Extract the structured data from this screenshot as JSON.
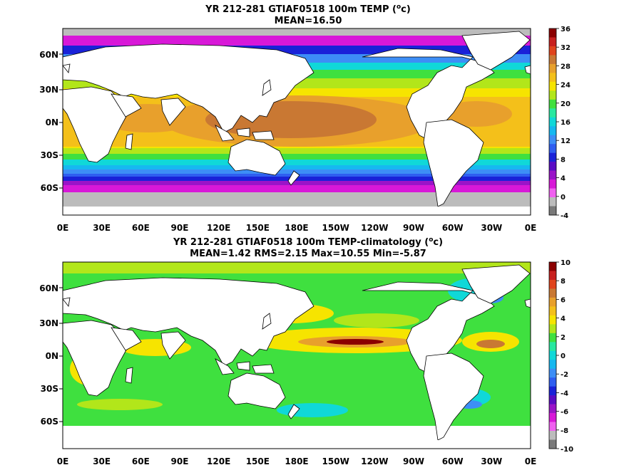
{
  "panels": [
    {
      "title_line1": "YR 212-281 GTIAF0518 100m TEMP (",
      "title_unit": "o",
      "title_suffix": "c)",
      "title_line2": "MEAN=16.50",
      "lat_ticks": [
        "60N",
        "30N",
        "0N",
        "30S",
        "60S"
      ],
      "lon_ticks": [
        "0E",
        "30E",
        "60E",
        "90E",
        "120E",
        "150E",
        "180E",
        "150W",
        "120W",
        "90W",
        "60W",
        "30W",
        "0E"
      ],
      "colorbar_ticks": [
        "36",
        "32",
        "28",
        "24",
        "20",
        "16",
        "12",
        "8",
        "4",
        "0",
        "-4"
      ],
      "colorbar_colors": [
        "#8b0000",
        "#c8201e",
        "#e0441c",
        "#c97833",
        "#e8a02c",
        "#f4c01a",
        "#f6e400",
        "#b2e61a",
        "#3fe03f",
        "#28e8a0",
        "#10d8d8",
        "#16b8f0",
        "#3d8ef6",
        "#2f5ef0",
        "#1a22d8",
        "#5a0cc4",
        "#9a14c8",
        "#d818d8",
        "#f060f0",
        "#bcbcbc",
        "#7a7a7a"
      ]
    },
    {
      "title_line1": "YR 212-281 GTIAF0518 100m TEMP-climatology (",
      "title_unit": "o",
      "title_suffix": "c)",
      "title_line2": "MEAN=1.42  RMS=2.15  Max=10.55  Min=-5.87",
      "lat_ticks": [
        "60N",
        "30N",
        "0N",
        "30S",
        "60S"
      ],
      "lon_ticks": [
        "0E",
        "30E",
        "60E",
        "90E",
        "120E",
        "150E",
        "180E",
        "150W",
        "120W",
        "90W",
        "60W",
        "30W",
        "0E"
      ],
      "colorbar_ticks": [
        "10",
        "8",
        "6",
        "4",
        "2",
        "0",
        "-2",
        "-4",
        "-6",
        "-8",
        "-10"
      ],
      "colorbar_colors": [
        "#8b0000",
        "#c8201e",
        "#e0441c",
        "#c97833",
        "#e8a02c",
        "#f4c01a",
        "#f6e400",
        "#b2e61a",
        "#3fe03f",
        "#28e8a0",
        "#10d8d8",
        "#16b8f0",
        "#3d8ef6",
        "#2f5ef0",
        "#1a22d8",
        "#5a0cc4",
        "#9a14c8",
        "#d818d8",
        "#f060f0",
        "#bcbcbc",
        "#7a7a7a"
      ]
    }
  ]
}
